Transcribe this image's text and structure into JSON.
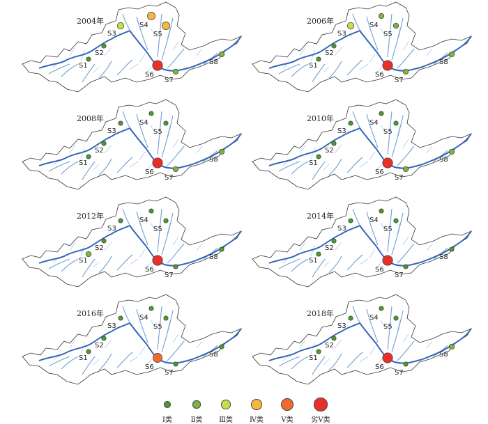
{
  "figure": {
    "grade_colors": {
      "I": "#4e9a2b",
      "II": "#7cb342",
      "III": "#c5de4b",
      "IV": "#f6b73c",
      "V": "#ef6a2b",
      "worse_than_V": "#e8302a"
    },
    "panels": [
      {
        "year": "2004年",
        "stations": [
          {
            "id": "S1",
            "label": "S1",
            "grade": "I"
          },
          {
            "id": "S2",
            "label": "S2",
            "grade": "I"
          },
          {
            "id": "S3",
            "label": "S3",
            "grade": "III"
          },
          {
            "id": "S4",
            "label": "S4",
            "grade": "IV"
          },
          {
            "id": "S5",
            "label": "S5",
            "grade": "IV"
          },
          {
            "id": "S6",
            "label": "S6",
            "grade": "worse_than_V"
          },
          {
            "id": "S7",
            "label": "S7",
            "grade": "II"
          },
          {
            "id": "S8",
            "label": "S8",
            "grade": "II"
          }
        ]
      },
      {
        "year": "2006年",
        "stations": [
          {
            "id": "S1",
            "label": "S1",
            "grade": "I"
          },
          {
            "id": "S2",
            "label": "S2",
            "grade": "I"
          },
          {
            "id": "S3",
            "label": "S3",
            "grade": "III"
          },
          {
            "id": "S4",
            "label": "S4",
            "grade": "II"
          },
          {
            "id": "S5",
            "label": "S5",
            "grade": "II"
          },
          {
            "id": "S6",
            "label": "S6",
            "grade": "worse_than_V"
          },
          {
            "id": "S7",
            "label": "S7",
            "grade": "II"
          },
          {
            "id": "S8",
            "label": "S8",
            "grade": "II"
          }
        ]
      },
      {
        "year": "2008年",
        "stations": [
          {
            "id": "S1",
            "label": "S1",
            "grade": "I"
          },
          {
            "id": "S2",
            "label": "S2",
            "grade": "I"
          },
          {
            "id": "S3",
            "label": "S3",
            "grade": "I"
          },
          {
            "id": "S4",
            "label": "S4",
            "grade": "I"
          },
          {
            "id": "S5",
            "label": "S5",
            "grade": "I"
          },
          {
            "id": "S6",
            "label": "S6",
            "grade": "worse_than_V"
          },
          {
            "id": "S7",
            "label": "S7",
            "grade": "II"
          },
          {
            "id": "S8",
            "label": "S8",
            "grade": "II"
          }
        ]
      },
      {
        "year": "2010年",
        "stations": [
          {
            "id": "S1",
            "label": "S1",
            "grade": "I"
          },
          {
            "id": "S2",
            "label": "S2",
            "grade": "I"
          },
          {
            "id": "S3",
            "label": "S3",
            "grade": "I"
          },
          {
            "id": "S4",
            "label": "S4",
            "grade": "I"
          },
          {
            "id": "S5",
            "label": "S5",
            "grade": "I"
          },
          {
            "id": "S6",
            "label": "S6",
            "grade": "worse_than_V"
          },
          {
            "id": "S7",
            "label": "S7",
            "grade": "II"
          },
          {
            "id": "S8",
            "label": "S8",
            "grade": "II"
          }
        ]
      },
      {
        "year": "2012年",
        "stations": [
          {
            "id": "S1",
            "label": "S1",
            "grade": "II"
          },
          {
            "id": "S2",
            "label": "S2",
            "grade": "I"
          },
          {
            "id": "S3",
            "label": "S3",
            "grade": "I"
          },
          {
            "id": "S4",
            "label": "S4",
            "grade": "I"
          },
          {
            "id": "S5",
            "label": "S5",
            "grade": "I"
          },
          {
            "id": "S6",
            "label": "S6",
            "grade": "worse_than_V"
          },
          {
            "id": "S7",
            "label": "S7",
            "grade": "I"
          },
          {
            "id": "S8",
            "label": "S8",
            "grade": "I"
          }
        ]
      },
      {
        "year": "2014年",
        "stations": [
          {
            "id": "S1",
            "label": "S1",
            "grade": "I"
          },
          {
            "id": "S2",
            "label": "S2",
            "grade": "I"
          },
          {
            "id": "S3",
            "label": "S3",
            "grade": "I"
          },
          {
            "id": "S4",
            "label": "S4",
            "grade": "I"
          },
          {
            "id": "S5",
            "label": "S5",
            "grade": "I"
          },
          {
            "id": "S6",
            "label": "S6",
            "grade": "worse_than_V"
          },
          {
            "id": "S7",
            "label": "S7",
            "grade": "I"
          },
          {
            "id": "S8",
            "label": "S8",
            "grade": "I"
          }
        ]
      },
      {
        "year": "2016年",
        "stations": [
          {
            "id": "S1",
            "label": "S1",
            "grade": "I"
          },
          {
            "id": "S2",
            "label": "S2",
            "grade": "I"
          },
          {
            "id": "S3",
            "label": "S3",
            "grade": "I"
          },
          {
            "id": "S4",
            "label": "S4",
            "grade": "I"
          },
          {
            "id": "S5",
            "label": "S5",
            "grade": "I"
          },
          {
            "id": "S6",
            "label": "S6",
            "grade": "V"
          },
          {
            "id": "S7",
            "label": "S7",
            "grade": "I"
          },
          {
            "id": "S8",
            "label": "S8",
            "grade": "I"
          }
        ]
      },
      {
        "year": "2018年",
        "stations": [
          {
            "id": "S1",
            "label": "S1",
            "grade": "I"
          },
          {
            "id": "S2",
            "label": "S2",
            "grade": "I"
          },
          {
            "id": "S3",
            "label": "S3",
            "grade": "I"
          },
          {
            "id": "S4",
            "label": "S4",
            "grade": "I"
          },
          {
            "id": "S5",
            "label": "S5",
            "grade": "I"
          },
          {
            "id": "S6",
            "label": "S6",
            "grade": "worse_than_V"
          },
          {
            "id": "S7",
            "label": "S7",
            "grade": "I"
          },
          {
            "id": "S8",
            "label": "S8",
            "grade": "II"
          }
        ]
      }
    ]
  },
  "legend": {
    "items": [
      {
        "grade": "I",
        "label": "Ⅰ类"
      },
      {
        "grade": "II",
        "label": "Ⅱ类"
      },
      {
        "grade": "III",
        "label": "Ⅲ类"
      },
      {
        "grade": "IV",
        "label": "Ⅳ类"
      },
      {
        "grade": "V",
        "label": "Ⅴ类"
      },
      {
        "grade": "worse_than_V",
        "label": "劣Ⅴ类"
      }
    ]
  }
}
